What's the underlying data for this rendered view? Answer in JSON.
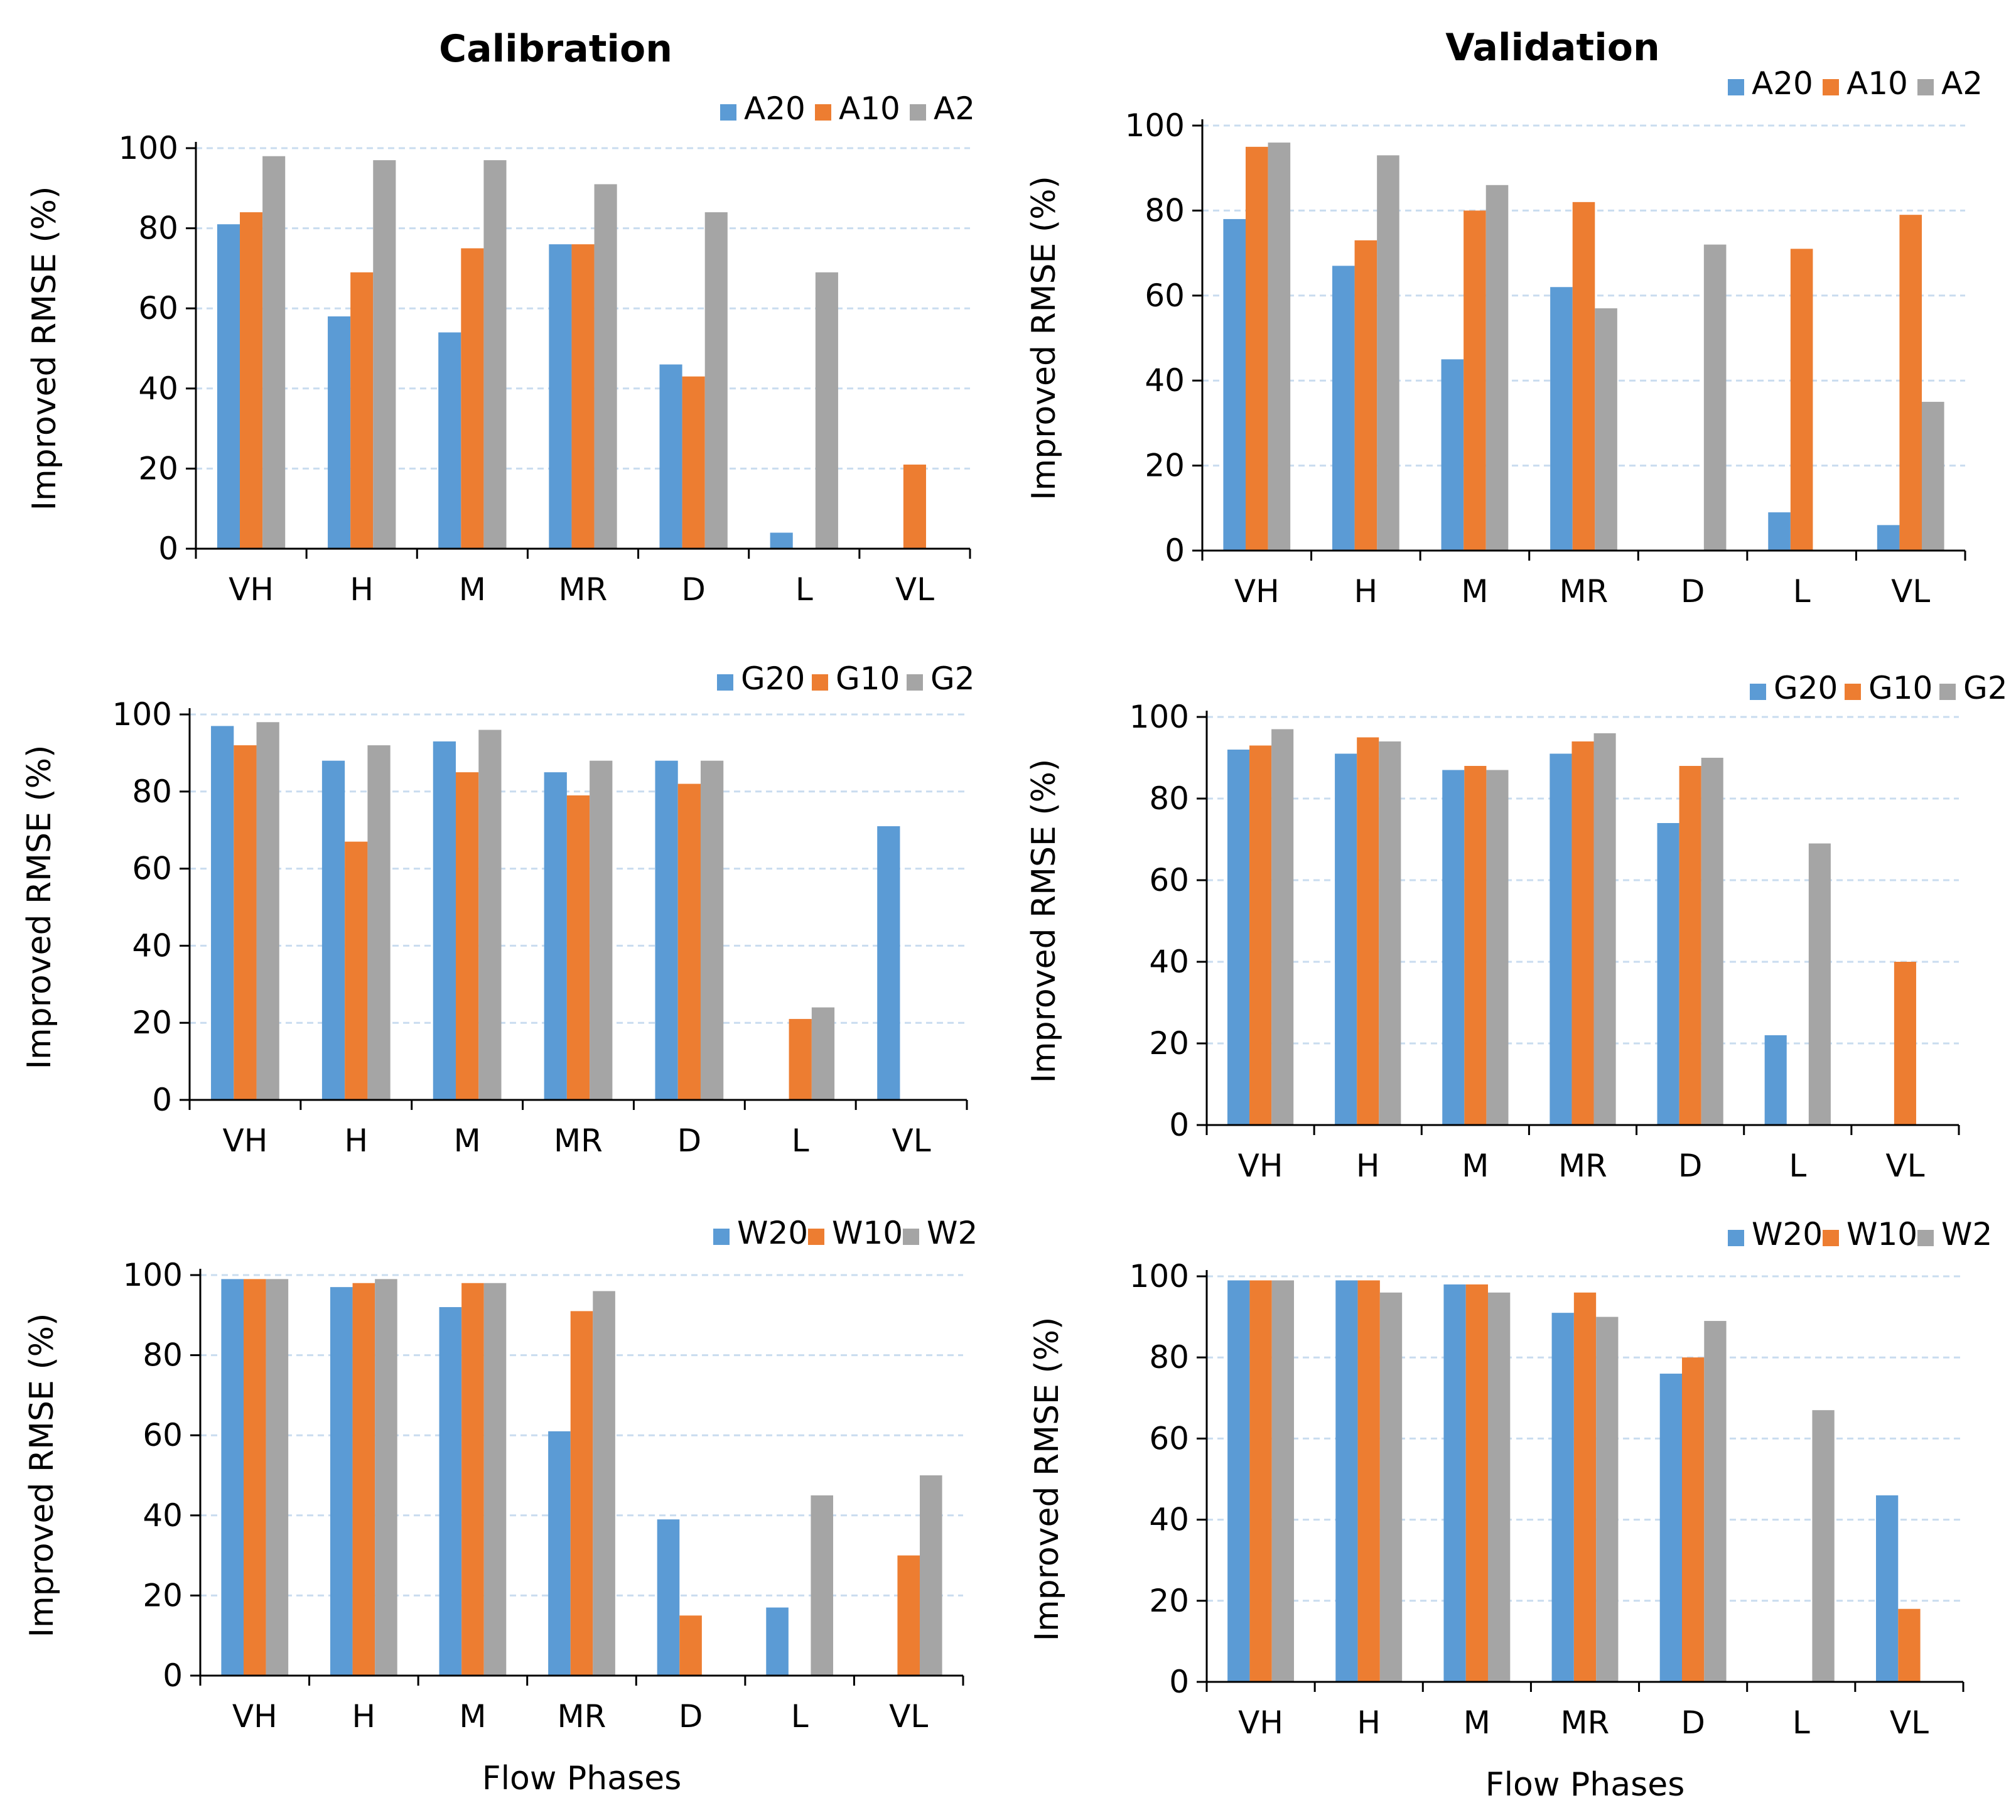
{
  "column_titles": [
    "Calibration",
    "Validation"
  ],
  "common": {
    "ylabel": "Improved RMSE (%)",
    "xlabel": "Flow Phases",
    "categories": [
      "VH",
      "H",
      "M",
      "MR",
      "D",
      "L",
      "VL"
    ],
    "yticks": [
      "0",
      "20",
      "40",
      "60",
      "80",
      "100"
    ],
    "colors": [
      "#5b9bd5",
      "#ed7d31",
      "#a5a5a5"
    ],
    "grid_color": "#c9dcef"
  },
  "chart_data": [
    {
      "type": "bar",
      "title": "Calibration",
      "ylabel": "Improved RMSE (%)",
      "xlabel": "",
      "ylim": [
        0,
        100
      ],
      "categories": [
        "VH",
        "H",
        "M",
        "MR",
        "D",
        "L",
        "VL"
      ],
      "legend": "top-right",
      "series": [
        {
          "name": "A20",
          "values": [
            81,
            58,
            54,
            76,
            46,
            4,
            0
          ]
        },
        {
          "name": "A10",
          "values": [
            84,
            69,
            75,
            76,
            43,
            0,
            21
          ]
        },
        {
          "name": "A2",
          "values": [
            98,
            97,
            97,
            91,
            84,
            69,
            0
          ]
        }
      ]
    },
    {
      "type": "bar",
      "title": "Validation",
      "ylabel": "Improved RMSE (%)",
      "xlabel": "",
      "ylim": [
        0,
        100
      ],
      "categories": [
        "VH",
        "H",
        "M",
        "MR",
        "D",
        "L",
        "VL"
      ],
      "legend": "top-right",
      "series": [
        {
          "name": "A20",
          "values": [
            78,
            67,
            45,
            62,
            0,
            9,
            6
          ]
        },
        {
          "name": "A10",
          "values": [
            95,
            73,
            80,
            82,
            0,
            71,
            79
          ]
        },
        {
          "name": "A2",
          "values": [
            96,
            93,
            86,
            57,
            72,
            0,
            35
          ]
        }
      ]
    },
    {
      "type": "bar",
      "title": "",
      "ylabel": "Improved RMSE (%)",
      "xlabel": "",
      "ylim": [
        0,
        100
      ],
      "categories": [
        "VH",
        "H",
        "M",
        "MR",
        "D",
        "L",
        "VL"
      ],
      "legend": "top-right",
      "series": [
        {
          "name": "G20",
          "values": [
            97,
            88,
            93,
            85,
            88,
            0,
            71
          ]
        },
        {
          "name": "G10",
          "values": [
            92,
            67,
            85,
            79,
            82,
            21,
            0
          ]
        },
        {
          "name": "G2",
          "values": [
            98,
            92,
            96,
            88,
            88,
            24,
            0
          ]
        }
      ]
    },
    {
      "type": "bar",
      "title": "",
      "ylabel": "Improved RMSE (%)",
      "xlabel": "",
      "ylim": [
        0,
        100
      ],
      "categories": [
        "VH",
        "H",
        "M",
        "MR",
        "D",
        "L",
        "VL"
      ],
      "legend": "top-right",
      "series": [
        {
          "name": "G20",
          "values": [
            92,
            91,
            87,
            91,
            74,
            22,
            0
          ]
        },
        {
          "name": "G10",
          "values": [
            93,
            95,
            88,
            94,
            88,
            0,
            40
          ]
        },
        {
          "name": "G2",
          "values": [
            97,
            94,
            87,
            96,
            90,
            69,
            0
          ]
        }
      ]
    },
    {
      "type": "bar",
      "title": "",
      "ylabel": "Improved RMSE (%)",
      "xlabel": "Flow Phases",
      "ylim": [
        0,
        100
      ],
      "categories": [
        "VH",
        "H",
        "M",
        "MR",
        "D",
        "L",
        "VL"
      ],
      "legend": "top-right",
      "series": [
        {
          "name": "W20",
          "values": [
            99,
            97,
            92,
            61,
            39,
            17,
            0
          ]
        },
        {
          "name": "W10",
          "values": [
            99,
            98,
            98,
            91,
            15,
            0,
            30
          ]
        },
        {
          "name": "W2",
          "values": [
            99,
            99,
            98,
            96,
            0,
            45,
            50
          ]
        }
      ]
    },
    {
      "type": "bar",
      "title": "",
      "ylabel": "Improved RMSE (%)",
      "xlabel": "Flow Phases",
      "ylim": [
        0,
        100
      ],
      "categories": [
        "VH",
        "H",
        "M",
        "MR",
        "D",
        "L",
        "VL"
      ],
      "legend": "top-right",
      "series": [
        {
          "name": "W20",
          "values": [
            99,
            99,
            98,
            91,
            76,
            0,
            46
          ]
        },
        {
          "name": "W10",
          "values": [
            99,
            99,
            98,
            96,
            80,
            0,
            18
          ]
        },
        {
          "name": "W2",
          "values": [
            99,
            96,
            96,
            90,
            89,
            67,
            0
          ]
        }
      ]
    }
  ]
}
